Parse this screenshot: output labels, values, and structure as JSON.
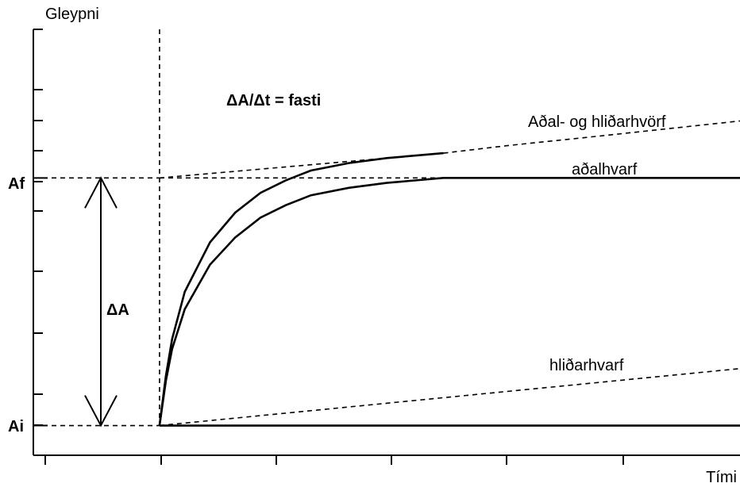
{
  "chart_data": {
    "type": "line",
    "xlabel": "Tími",
    "ylabel": "Gleypni",
    "grid": false,
    "y_tick_labels": [
      {
        "label": "Af",
        "value": 1.0
      },
      {
        "label": "Ai",
        "value": 0.0
      }
    ],
    "delta_label": "ΔA",
    "formula": "ΔA/Δt = fasti",
    "series": [
      {
        "name": "aðalhvarf",
        "style": "solid",
        "x": [
          0.0,
          0.05,
          0.1,
          0.2,
          0.4,
          0.6,
          0.8,
          1.0,
          1.2,
          1.5,
          1.8,
          2.25,
          2.75,
          3.5,
          4.6
        ],
        "y": [
          0.0,
          0.18,
          0.31,
          0.47,
          0.65,
          0.76,
          0.84,
          0.89,
          0.93,
          0.96,
          0.98,
          1.0,
          1.0,
          1.0,
          1.0
        ]
      },
      {
        "name": "Aðal- og hliðarhvörf",
        "style": "solid+dashed",
        "x": [
          0.0,
          0.05,
          0.1,
          0.2,
          0.4,
          0.6,
          0.8,
          1.0,
          1.2,
          1.5,
          1.8,
          2.25,
          2.75,
          3.5,
          4.6
        ],
        "y": [
          0.0,
          0.2,
          0.35,
          0.54,
          0.74,
          0.86,
          0.94,
          0.99,
          1.03,
          1.06,
          1.08,
          1.1,
          1.13,
          1.17,
          1.23
        ]
      },
      {
        "name": "hliðarhvarf",
        "style": "dashed",
        "x": [
          0.0,
          4.6
        ],
        "y": [
          0.0,
          0.23
        ]
      }
    ],
    "baseline": {
      "style": "solid",
      "y": 0.0
    },
    "xlim": [
      -1.0,
      4.6
    ],
    "ylim": [
      -0.12,
      1.6
    ]
  }
}
